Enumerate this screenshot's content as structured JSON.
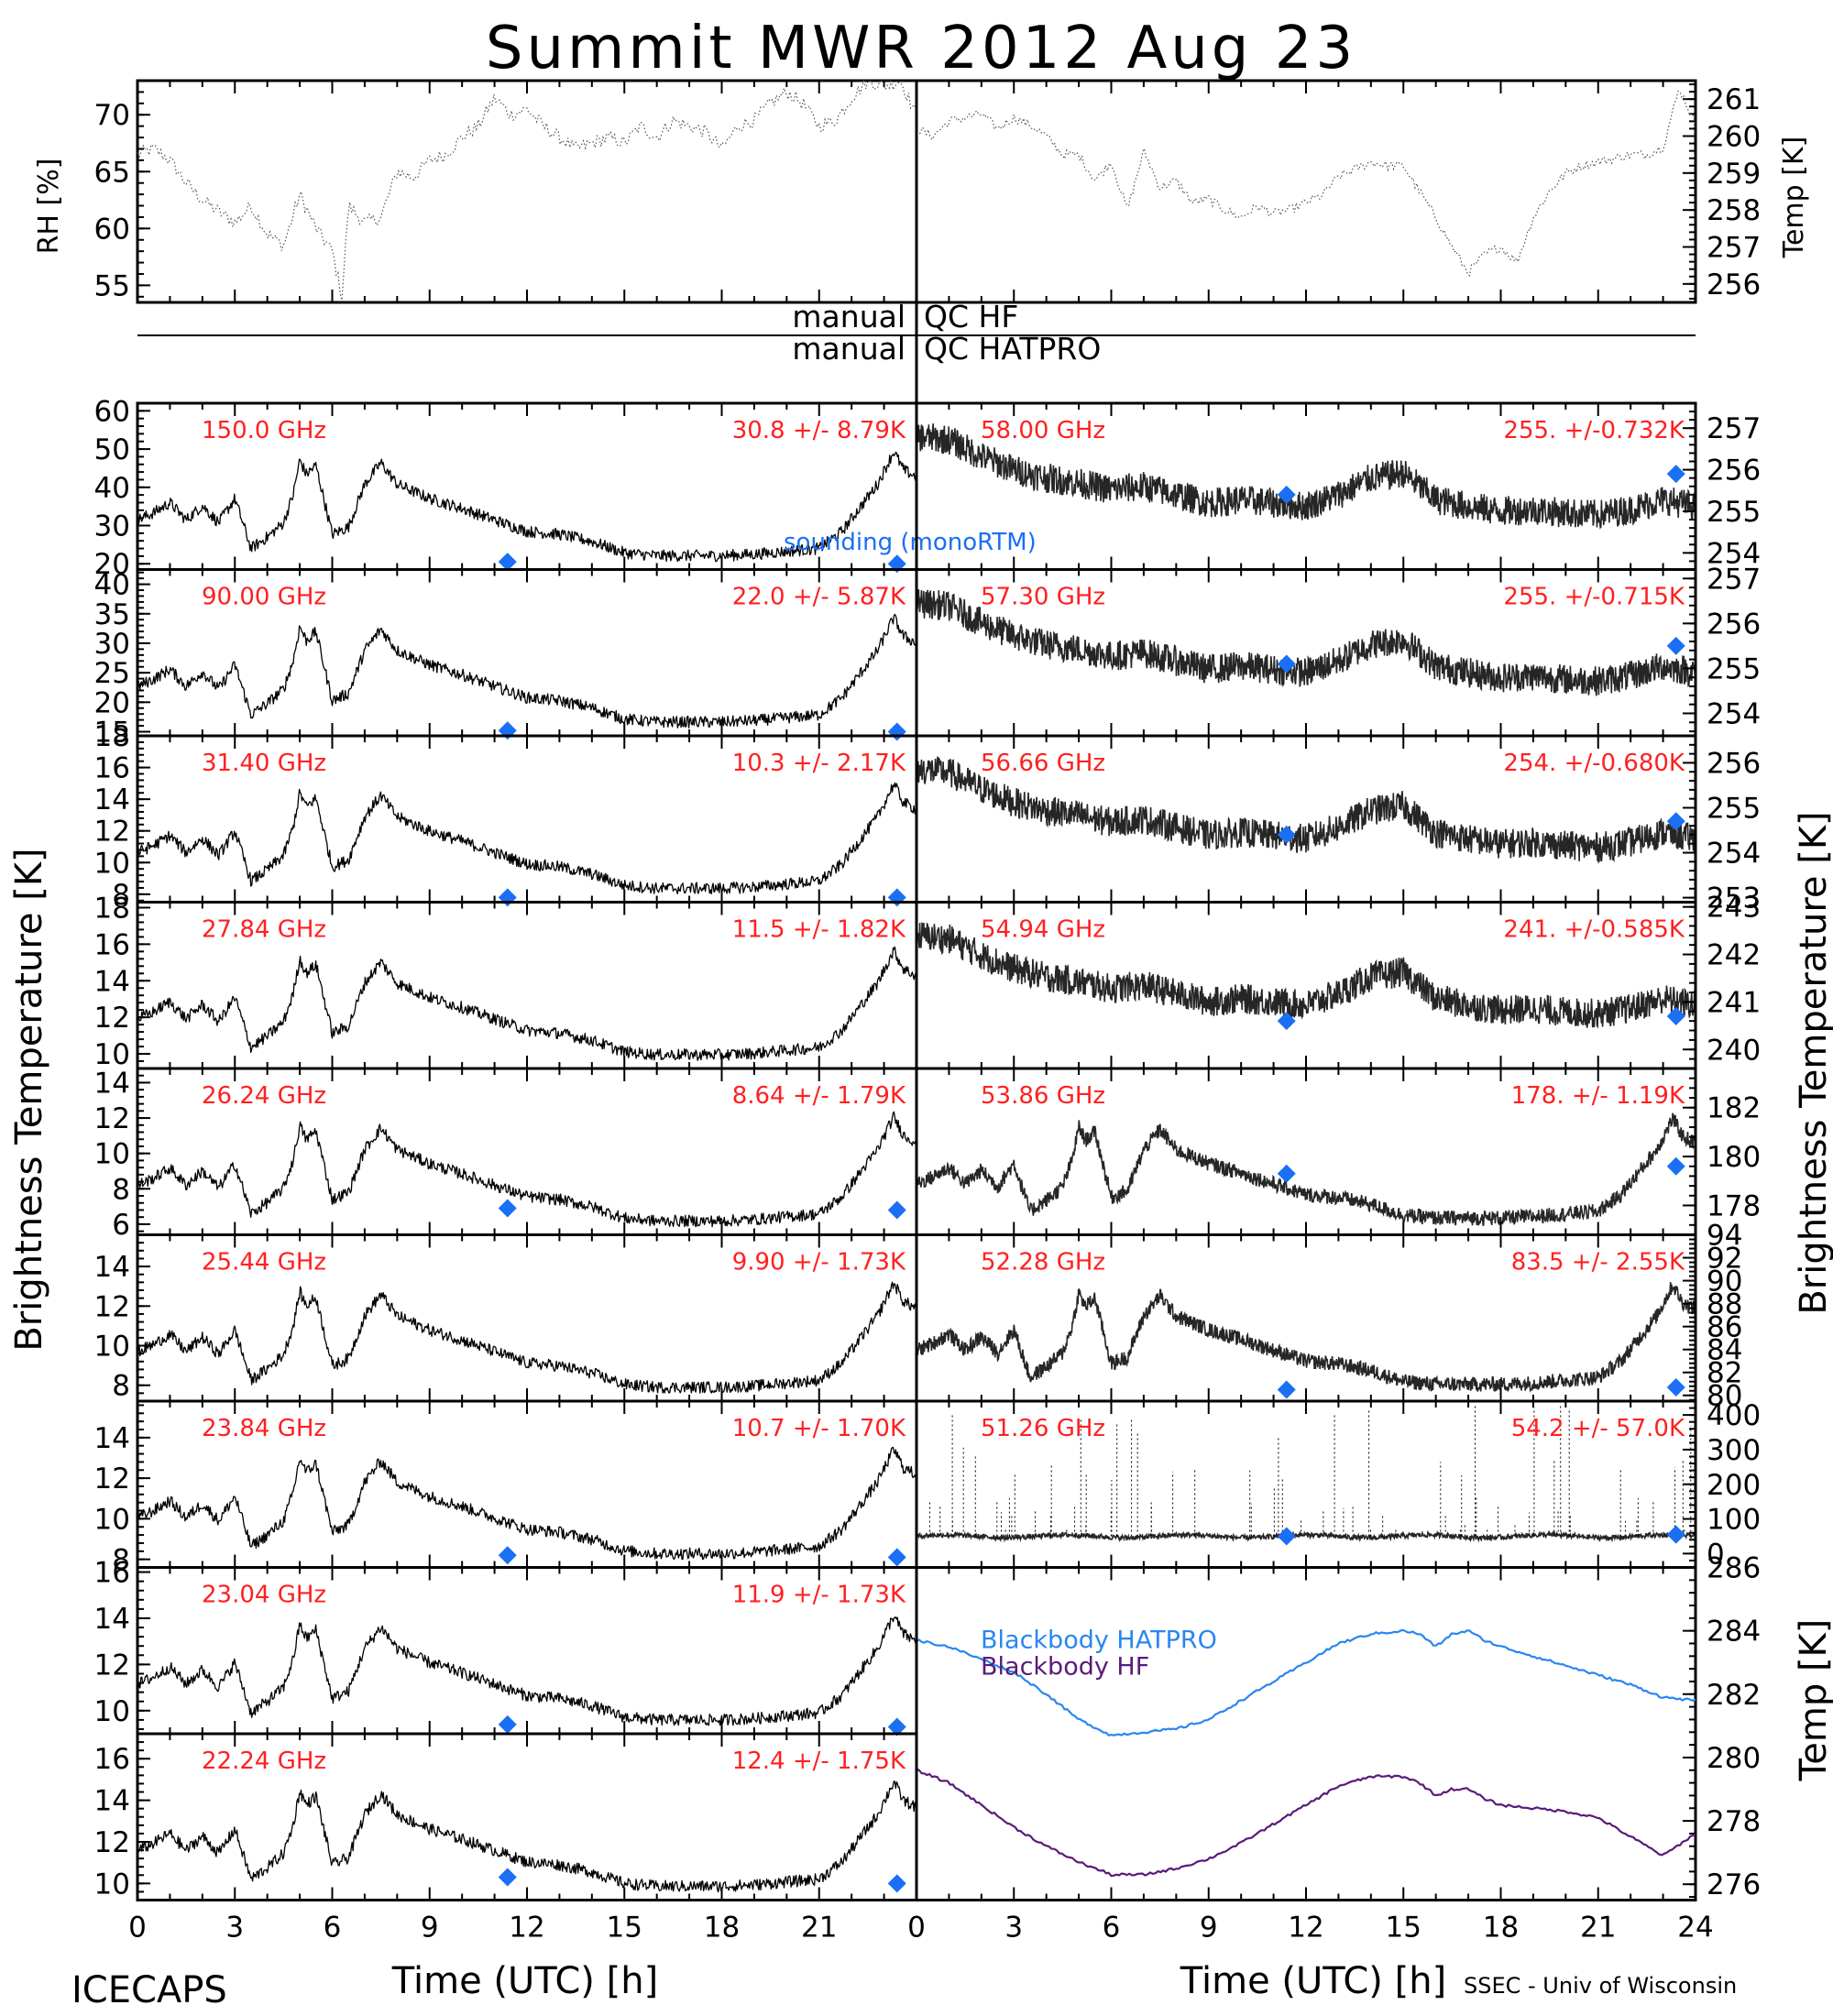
{
  "title": "Summit MWR 2012 Aug 23",
  "footer": {
    "left": "ICECAPS",
    "right": "SSEC - Univ of Wisconsin"
  },
  "qc_labels": {
    "hf_left": "manual",
    "hf_right": "QC HF",
    "hatpro_left": "manual",
    "hatpro_right": "QC HATPRO"
  },
  "axis_titles": {
    "left_brightness": "Brightness Temperature [K]",
    "right_brightness": "Brightness Temperature [K]",
    "rh": "RH [%]",
    "temp_top": "Temp [K]",
    "temp_bb": "Temp [K]",
    "x_left": "Time (UTC) [h]",
    "x_right": "Time (UTC) [h]"
  },
  "colors": {
    "annotation": "#ff2020",
    "sounding": "#1a6ff5",
    "blackbody_hatpro": "#2a86f0",
    "blackbody_hf": "#5a1a7a",
    "trace": "#000000"
  },
  "chart_data": [
    {
      "id": "rh",
      "type": "line",
      "ylabel": "RH [%]",
      "xlim": [
        0,
        24
      ],
      "ylim": [
        53.5,
        73
      ],
      "yticks": [
        55,
        60,
        65,
        70
      ],
      "x": [
        0,
        0.5,
        1,
        1.5,
        2,
        2.5,
        3,
        3.5,
        4,
        4.5,
        5,
        5.5,
        6,
        6.3,
        6.5,
        7,
        7.5,
        8,
        8.5,
        9,
        9.5,
        10,
        10.5,
        11,
        11.5,
        12,
        12.5,
        13,
        13.5,
        14,
        14.5,
        15,
        15.5,
        16,
        16.5,
        17,
        17.5,
        18,
        18.5,
        19,
        19.5,
        20,
        20.5,
        21,
        21.5,
        22,
        22.5,
        23,
        23.5,
        24
      ],
      "y": [
        66.5,
        67,
        66,
        64,
        62.5,
        61.5,
        60.5,
        62,
        59.5,
        58.5,
        63,
        60,
        58,
        54,
        62,
        60.5,
        61,
        65,
        64.5,
        66,
        66.5,
        68,
        69,
        71.5,
        70,
        70.5,
        69,
        68,
        67,
        67.5,
        68,
        67.5,
        69,
        68,
        69.5,
        69,
        68.5,
        67,
        69,
        69.5,
        71,
        72,
        71,
        69,
        69.5,
        71.5,
        73,
        72.5,
        73,
        70
      ]
    },
    {
      "id": "temp",
      "type": "line",
      "ylabel": "Temp [K]",
      "xlim": [
        0,
        24
      ],
      "ylim": [
        255.5,
        261.5
      ],
      "yticks": [
        256,
        257,
        258,
        259,
        260,
        261
      ],
      "x": [
        0,
        0.5,
        1,
        1.5,
        2,
        2.5,
        3,
        3.5,
        4,
        4.5,
        5,
        5.5,
        6,
        6.5,
        7,
        7.5,
        8,
        8.5,
        9,
        9.5,
        10,
        10.5,
        11,
        11.5,
        12,
        12.5,
        13,
        13.5,
        14,
        14.5,
        15,
        15.5,
        16,
        16.5,
        17,
        17.5,
        18,
        18.5,
        19,
        19.5,
        20,
        20.5,
        21,
        21.5,
        22,
        22.5,
        23,
        23.5,
        24
      ],
      "y": [
        260.2,
        260,
        260.4,
        260.5,
        260.6,
        260.2,
        260.5,
        260.3,
        260,
        259.5,
        259.5,
        258.8,
        259.3,
        258,
        259.6,
        258.6,
        258.8,
        258.2,
        258.3,
        258,
        257.8,
        258.1,
        257.9,
        258,
        258.2,
        258.4,
        258.9,
        259.1,
        259.3,
        259.2,
        259.2,
        258.5,
        257.8,
        257,
        256.3,
        256.8,
        257,
        256.6,
        257.8,
        258.5,
        259,
        259.2,
        259.3,
        259.4,
        259.5,
        259.5,
        259.7,
        261.3,
        260.3
      ]
    },
    {
      "id": "hf_150",
      "type": "line",
      "annotation_left": "150.0 GHz",
      "annotation_right": "30.8 +/-  8.79K",
      "legend": "sounding (monoRTM)",
      "xlim": [
        0,
        24
      ],
      "ylim": [
        18.5,
        62
      ],
      "yticks": [
        20,
        30,
        40,
        50,
        60
      ],
      "sounding": [
        [
          11.4,
          20.5
        ],
        [
          23.4,
          20
        ]
      ]
    },
    {
      "id": "hf_90",
      "type": "line",
      "annotation_left": "90.00 GHz",
      "annotation_right": "22.0 +/-  5.87K",
      "xlim": [
        0,
        24
      ],
      "ylim": [
        14.3,
        42.5
      ],
      "yticks": [
        15,
        20,
        25,
        30,
        35,
        40
      ],
      "sounding": [
        [
          11.4,
          15.2
        ],
        [
          23.4,
          15
        ]
      ]
    },
    {
      "id": "hf_31.40",
      "type": "line",
      "annotation_left": "31.40 GHz",
      "annotation_right": "10.3 +/- 2.17K",
      "xlim": [
        0,
        24
      ],
      "ylim": [
        7.5,
        18
      ],
      "yticks": [
        8,
        10,
        12,
        14,
        16,
        18
      ],
      "sounding": [
        [
          11.4,
          7.8
        ],
        [
          23.4,
          7.8
        ]
      ]
    },
    {
      "id": "hf_27.84",
      "type": "line",
      "annotation_left": "27.84 GHz",
      "annotation_right": "11.5 +/- 1.82K",
      "xlim": [
        0,
        24
      ],
      "ylim": [
        9.2,
        18.3
      ],
      "yticks": [
        10,
        12,
        14,
        16,
        18
      ],
      "sounding": []
    },
    {
      "id": "hf_26.24",
      "type": "line",
      "annotation_left": "26.24 GHz",
      "annotation_right": "8.64 +/- 1.79K",
      "xlim": [
        0,
        24
      ],
      "ylim": [
        5.4,
        14.8
      ],
      "yticks": [
        6,
        8,
        10,
        12,
        14
      ],
      "sounding": [
        [
          11.4,
          6.9
        ],
        [
          23.4,
          6.8
        ]
      ]
    },
    {
      "id": "hf_25.44",
      "type": "line",
      "annotation_left": "25.44 GHz",
      "annotation_right": "9.90 +/- 1.73K",
      "xlim": [
        0,
        24
      ],
      "ylim": [
        7.2,
        15.6
      ],
      "yticks": [
        8,
        10,
        12,
        14
      ],
      "sounding": []
    },
    {
      "id": "hf_23.84",
      "type": "line",
      "annotation_left": "23.84 GHz",
      "annotation_right": "10.7 +/- 1.70K",
      "xlim": [
        0,
        24
      ],
      "ylim": [
        7.6,
        15.8
      ],
      "yticks": [
        8,
        10,
        12,
        14
      ],
      "sounding": [
        [
          11.4,
          8.2
        ],
        [
          23.4,
          8.1
        ]
      ]
    },
    {
      "id": "hf_23.04",
      "type": "line",
      "annotation_left": "23.04 GHz",
      "annotation_right": "11.9 +/- 1.73K",
      "xlim": [
        0,
        24
      ],
      "ylim": [
        9.0,
        16.2
      ],
      "yticks": [
        10,
        12,
        14,
        16
      ],
      "sounding": [
        [
          11.4,
          9.4
        ],
        [
          23.4,
          9.3
        ]
      ]
    },
    {
      "id": "hf_22.24",
      "type": "line",
      "annotation_left": "22.24 GHz",
      "annotation_right": "12.4 +/- 1.75K",
      "xlim": [
        0,
        24
      ],
      "ylim": [
        9.2,
        17.2
      ],
      "yticks": [
        10,
        12,
        14,
        16
      ],
      "xlabel": "Time (UTC) [h]",
      "sounding": [
        [
          11.4,
          10.3
        ],
        [
          23.4,
          10.0
        ]
      ]
    },
    {
      "id": "hat_58.00",
      "type": "line",
      "annotation_left": "58.00 GHz",
      "annotation_right": "255. +/-0.732K",
      "xlim": [
        0,
        24
      ],
      "ylim": [
        253.6,
        257.6
      ],
      "yticks": [
        254,
        255,
        256,
        257
      ],
      "sounding": [
        [
          11.4,
          255.4
        ],
        [
          23.4,
          255.9
        ]
      ]
    },
    {
      "id": "hat_57.30",
      "type": "line",
      "annotation_left": "57.30 GHz",
      "annotation_right": "255. +/-0.715K",
      "xlim": [
        0,
        24
      ],
      "ylim": [
        253.5,
        257.2
      ],
      "yticks": [
        254,
        255,
        256,
        257
      ],
      "sounding": [
        [
          11.4,
          255.1
        ],
        [
          23.4,
          255.5
        ]
      ]
    },
    {
      "id": "hat_56.66",
      "type": "line",
      "annotation_left": "56.66 GHz",
      "annotation_right": "254. +/-0.680K",
      "xlim": [
        0,
        24
      ],
      "ylim": [
        252.9,
        256.6
      ],
      "yticks": [
        253,
        254,
        255,
        256
      ],
      "sounding": [
        [
          11.4,
          254.4
        ],
        [
          23.4,
          254.7
        ]
      ]
    },
    {
      "id": "hat_54.94",
      "type": "line",
      "annotation_left": "54.94 GHz",
      "annotation_right": "241. +/-0.585K",
      "xlim": [
        0,
        24
      ],
      "ylim": [
        239.6,
        243.1
      ],
      "yticks": [
        240,
        241,
        242,
        243
      ],
      "sounding": [
        [
          11.4,
          240.6
        ],
        [
          23.4,
          240.7
        ]
      ]
    },
    {
      "id": "hat_53.86",
      "type": "line",
      "annotation_left": "53.86 GHz",
      "annotation_right": "178. +/- 1.19K",
      "xlim": [
        0,
        24
      ],
      "ylim": [
        176.8,
        183.6
      ],
      "yticks": [
        178,
        180,
        182
      ],
      "sounding": [
        [
          11.4,
          179.3
        ],
        [
          23.4,
          179.6
        ]
      ]
    },
    {
      "id": "hat_52.28",
      "type": "line",
      "annotation_left": "52.28 GHz",
      "annotation_right": "83.5 +/- 2.55K",
      "xlim": [
        0,
        24
      ],
      "ylim": [
        79.5,
        94
      ],
      "yticks": [
        80,
        82,
        84,
        86,
        88,
        90,
        92,
        94
      ],
      "sounding": [
        [
          11.4,
          80.5
        ],
        [
          23.4,
          80.7
        ]
      ]
    },
    {
      "id": "hat_51.26",
      "type": "line",
      "annotation_left": "51.26 GHz",
      "annotation_right": "54.2 +/- 57.0K",
      "xlim": [
        0,
        24
      ],
      "ylim": [
        -40,
        440
      ],
      "yticks": [
        0,
        100,
        200,
        300,
        400
      ],
      "sounding": [
        [
          11.4,
          50
        ],
        [
          23.4,
          55
        ]
      ]
    },
    {
      "id": "blackbody",
      "type": "line",
      "ylabel": "Temp [K]",
      "xlabel": "Time (UTC) [h]",
      "xlim": [
        0,
        24
      ],
      "ylim": [
        275.5,
        286
      ],
      "yticks": [
        276,
        278,
        280,
        282,
        284,
        286
      ],
      "series": [
        {
          "name": "Blackbody HATPRO",
          "x": [
            0,
            1,
            2,
            3,
            4,
            5,
            6,
            7,
            8,
            9,
            10,
            11,
            12,
            13,
            14,
            15,
            15.5,
            16,
            16.5,
            17,
            17.5,
            18,
            19,
            20,
            21,
            22,
            23,
            24
          ],
          "y": [
            283.7,
            283.5,
            283.1,
            282.7,
            282.0,
            281.2,
            280.7,
            280.8,
            280.9,
            281.2,
            281.8,
            282.4,
            283.0,
            283.6,
            283.9,
            284.0,
            283.9,
            283.5,
            283.9,
            284.0,
            283.7,
            283.5,
            283.2,
            282.9,
            282.6,
            282.3,
            281.9,
            281.8
          ]
        },
        {
          "name": "Blackbody HF",
          "x": [
            0,
            1,
            2,
            3,
            4,
            5,
            6,
            7,
            8,
            9,
            10,
            11,
            12,
            13,
            14,
            15,
            15.5,
            16,
            16.5,
            17,
            17.5,
            18,
            19,
            20,
            21,
            22,
            23,
            24
          ],
          "y": [
            279.6,
            279.2,
            278.5,
            277.8,
            277.2,
            276.7,
            276.3,
            276.3,
            276.5,
            276.8,
            277.3,
            277.9,
            278.5,
            279.1,
            279.4,
            279.4,
            279.2,
            278.8,
            279.0,
            279.0,
            278.7,
            278.5,
            278.4,
            278.3,
            278.1,
            277.5,
            276.9,
            277.6
          ]
        }
      ]
    }
  ],
  "x_ticks": {
    "left": [
      "0",
      "3",
      "6",
      "9",
      "12",
      "15",
      "18",
      "21",
      ""
    ],
    "right": [
      "0",
      "3",
      "6",
      "9",
      "12",
      "15",
      "18",
      "21",
      "24"
    ]
  }
}
